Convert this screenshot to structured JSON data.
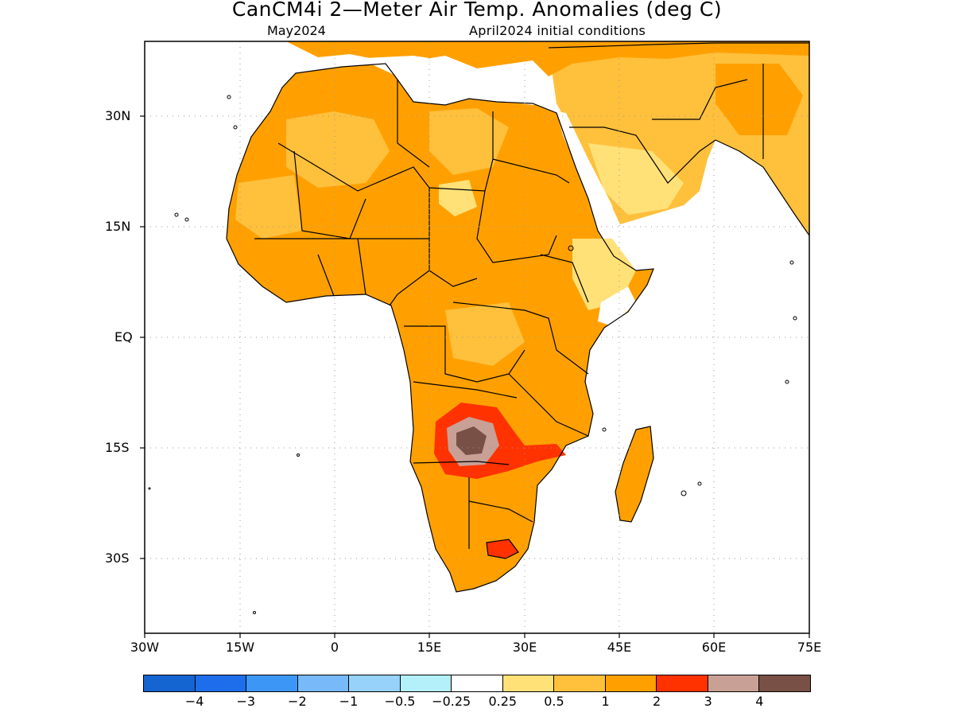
{
  "title": "CanCM4i 2—Meter Air Temp. Anomalies (deg C)",
  "subtitle_left": "May2024",
  "subtitle_right": "April2024 initial conditions",
  "lat_labels": [
    "30N",
    "15N",
    "EQ",
    "15S",
    "30S"
  ],
  "lon_labels": [
    "30W",
    "15W",
    "0",
    "15E",
    "30E",
    "45E",
    "60E",
    "75E"
  ],
  "legend": {
    "colors": [
      "#1464d2",
      "#1e6eeb",
      "#3c96f5",
      "#78b9fa",
      "#96d2fa",
      "#b4f0fa",
      "#ffffff",
      "#ffe178",
      "#ffc03c",
      "#ffa000",
      "#ff3200",
      "#c8a096",
      "#785046"
    ],
    "labels": [
      "−4",
      "−3",
      "−2",
      "−1",
      "−0.5",
      "−0.25",
      "0.25",
      "0.5",
      "1",
      "2",
      "3",
      "4"
    ]
  },
  "map_data": {
    "region": "Africa and the Middle East",
    "lon_range": [
      -30,
      75
    ],
    "lat_range": [
      -40,
      40
    ],
    "variable": "2-meter air temperature anomaly",
    "units": "deg C",
    "features": [
      {
        "area": "most of Africa",
        "anomaly_range": [
          1,
          2
        ]
      },
      {
        "area": "Angola, Zambia and Namibia border region",
        "anomaly_range": [
          2,
          4
        ]
      },
      {
        "area": "central southern Africa core",
        "anomaly_min": 4
      },
      {
        "area": "South Africa interior patch",
        "anomaly_range": [
          2,
          3
        ]
      },
      {
        "area": "Sahara and Arabian Peninsula patches",
        "anomaly_range": [
          0.5,
          1
        ]
      },
      {
        "area": "Horn of Africa and southern Arabia",
        "anomaly_range": [
          0.25,
          0.5
        ]
      }
    ]
  }
}
